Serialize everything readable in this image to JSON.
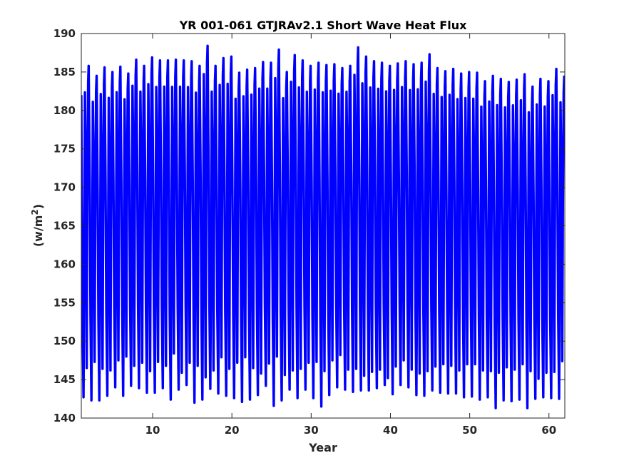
{
  "chart_data": {
    "type": "line",
    "title": "YR 001-061 GTJRAv2.1 Short Wave Heat Flux",
    "xlabel": "Year",
    "ylabel_main": "(w/m",
    "ylabel_sup": "2",
    "ylabel_end": ")",
    "xlim": [
      1,
      62
    ],
    "ylim": [
      140,
      190
    ],
    "xticks": [
      10,
      20,
      30,
      40,
      50,
      60
    ],
    "yticks": [
      140,
      145,
      150,
      155,
      160,
      165,
      170,
      175,
      180,
      185,
      190
    ],
    "grid": false,
    "series_color": "#0000ff",
    "seasonal_cycles": 61,
    "annual_max": [
      185.8,
      184.5,
      185.6,
      185.0,
      185.7,
      184.8,
      186.6,
      185.8,
      186.9,
      186.5,
      186.5,
      186.6,
      186.5,
      186.4,
      185.8,
      188.4,
      185.8,
      186.8,
      187.0,
      184.9,
      185.3,
      185.5,
      186.3,
      186.2,
      187.9,
      185.0,
      187.2,
      186.5,
      185.8,
      186.2,
      185.9,
      186.0,
      185.5,
      185.8,
      188.2,
      187.0,
      186.4,
      186.2,
      185.8,
      186.1,
      186.4,
      186.0,
      186.2,
      187.3,
      185.5,
      185.1,
      185.4,
      184.8,
      185.0,
      184.9,
      183.8,
      184.5,
      184.1,
      183.7,
      184.0,
      184.7,
      183.1,
      184.1,
      183.8,
      185.4,
      184.4
    ],
    "annual_min": [
      142.7,
      142.3,
      142.3,
      142.9,
      144.0,
      142.9,
      144.2,
      143.9,
      143.3,
      143.3,
      143.9,
      142.4,
      143.7,
      144.3,
      142.0,
      142.4,
      143.8,
      143.2,
      142.9,
      142.6,
      142.1,
      142.4,
      143.0,
      144.2,
      141.6,
      142.3,
      143.7,
      142.6,
      143.7,
      142.6,
      141.5,
      143.0,
      144.0,
      143.7,
      143.4,
      143.6,
      143.6,
      143.9,
      144.3,
      143.1,
      144.3,
      144.0,
      143.0,
      142.9,
      143.6,
      143.3,
      143.2,
      143.2,
      142.7,
      142.8,
      142.4,
      142.7,
      141.3,
      142.3,
      142.2,
      142.4,
      141.3,
      142.5,
      142.7,
      142.6,
      142.5
    ],
    "mid_dip_values": [
      146.5,
      147.3,
      146.4,
      146.2,
      147.5,
      148.0,
      146.8,
      147.2,
      146.1,
      147.3,
      146.8,
      148.4,
      145.9,
      147.2,
      146.8,
      145.3,
      146.2,
      147.9,
      146.4,
      147.2,
      147.9,
      146.5,
      145.8,
      147.1,
      148.0,
      145.6,
      146.2,
      146.4,
      147.2,
      147.3,
      146.1,
      147.5,
      148.2,
      146.3,
      146.4,
      145.5,
      146.0,
      146.3,
      145.2,
      146.7,
      147.5,
      146.3,
      145.8,
      146.1,
      146.7,
      147.0,
      146.8,
      146.2,
      147.0,
      147.0,
      146.2,
      146.1,
      145.9,
      146.6,
      146.3,
      147.0,
      146.1,
      145.1,
      145.9,
      146.0,
      147.4
    ],
    "first_value": 182.0,
    "last_value": 182.5
  }
}
